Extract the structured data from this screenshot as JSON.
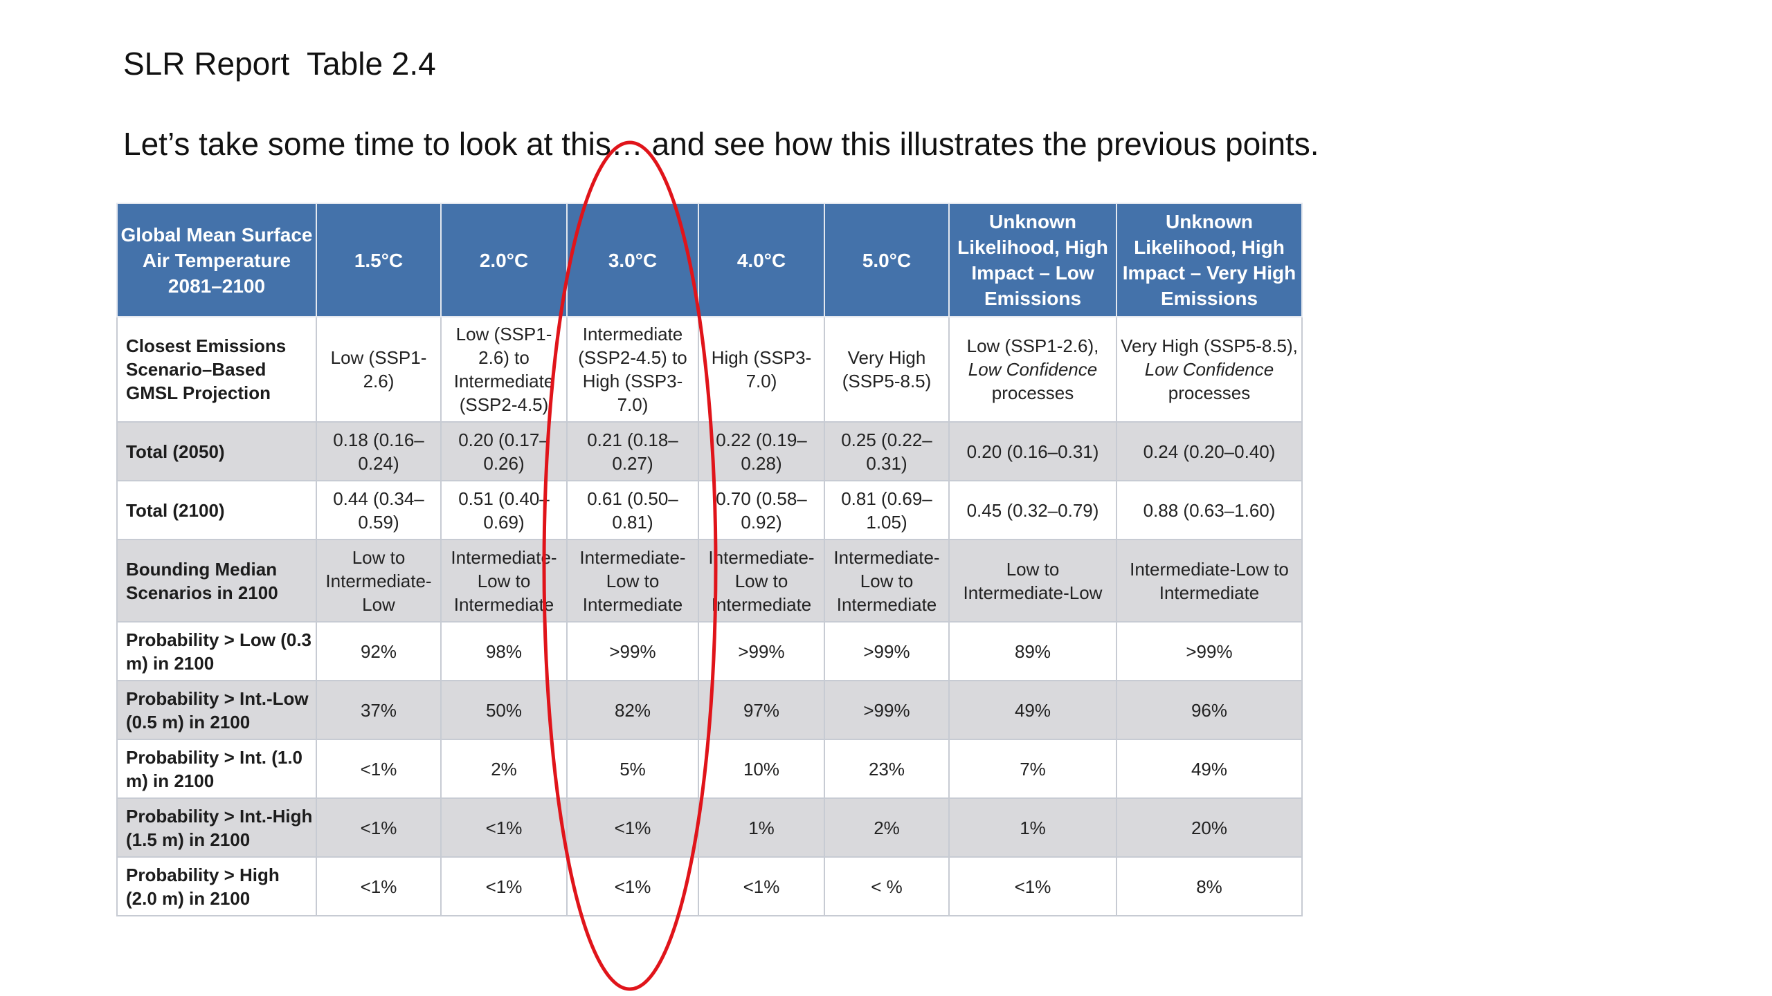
{
  "slide": {
    "title": "SLR Report  Table 2.4",
    "subtitle": "Let’s take some time to look at this… and see how this illustrates the previous points."
  },
  "table": {
    "header": [
      "Global Mean Surface Air Temperature 2081–2100",
      "1.5°C",
      "2.0°C",
      "3.0°C",
      "4.0°C",
      "5.0°C",
      "Unknown Likelihood, High Impact – Low Emissions",
      "Unknown Likelihood, High Impact – Very High Emissions"
    ],
    "closest": {
      "label": "Closest Emissions Scenario–Based GMSL Projection",
      "cells": [
        "Low (SSP1-2.6)",
        "Low (SSP1-2.6) to Intermediate (SSP2-4.5)",
        "Intermediate (SSP2-4.5) to High (SSP3-7.0)",
        "High (SSP3-7.0)",
        "Very High (SSP5-8.5)"
      ],
      "low_emissions": {
        "main": "Low (SSP1-2.6),",
        "italic": "Low Confidence",
        "tail": "processes"
      },
      "high_emissions": {
        "main": "Very High (SSP5-8.5),",
        "italic": "Low Confidence",
        "tail": "processes"
      }
    },
    "rows": [
      {
        "label": "Total (2050)",
        "cells": [
          "0.18 (0.16–0.24)",
          "0.20 (0.17–0.26)",
          "0.21 (0.18–0.27)",
          "0.22 (0.19–0.28)",
          "0.25 (0.22–0.31)",
          "0.20 (0.16–0.31)",
          "0.24 (0.20–0.40)"
        ]
      },
      {
        "label": "Total (2100)",
        "cells": [
          "0.44 (0.34–0.59)",
          "0.51 (0.40–0.69)",
          "0.61 (0.50–0.81)",
          "0.70 (0.58–0.92)",
          "0.81 (0.69–1.05)",
          "0.45 (0.32–0.79)",
          "0.88 (0.63–1.60)"
        ]
      },
      {
        "label": "Bounding Median Scenarios in 2100",
        "cells": [
          "Low to Intermediate-Low",
          "Intermediate-Low to Intermediate",
          "Intermediate-Low to Intermediate",
          "Intermediate-Low to Intermediate",
          "Intermediate-Low to Intermediate",
          "Low to Intermediate-Low",
          "Intermediate-Low to Intermediate"
        ]
      },
      {
        "label": "Probability > Low (0.3 m) in 2100",
        "cells": [
          "92%",
          "98%",
          ">99%",
          ">99%",
          ">99%",
          "89%",
          ">99%"
        ]
      },
      {
        "label": "Probability > Int.-Low (0.5 m) in 2100",
        "cells": [
          "37%",
          "50%",
          "82%",
          "97%",
          ">99%",
          "49%",
          "96%"
        ]
      },
      {
        "label": "Probability > Int. (1.0 m) in 2100",
        "cells": [
          "<1%",
          "2%",
          "5%",
          "10%",
          "23%",
          "7%",
          "49%"
        ]
      },
      {
        "label": "Probability > Int.-High (1.5 m) in 2100",
        "cells": [
          "<1%",
          "<1%",
          "<1%",
          "1%",
          "2%",
          "1%",
          "20%"
        ]
      },
      {
        "label": "Probability > High (2.0 m) in 2100",
        "cells": [
          "<1%",
          "<1%",
          "<1%",
          "<1%",
          "< %",
          "<1%",
          "8%"
        ]
      }
    ]
  },
  "colors": {
    "header_bg": "#4472aa",
    "shade_bg": "#d9d9dc",
    "annotation": "#e0141a"
  }
}
